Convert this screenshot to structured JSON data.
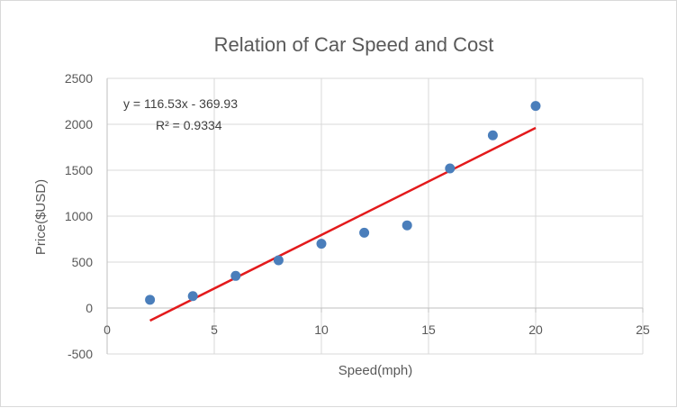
{
  "chart_data": {
    "type": "scatter",
    "title": "Relation of Car Speed and Cost",
    "xlabel": "Speed(mph)",
    "ylabel": "Price($USD)",
    "xlim": [
      0,
      25
    ],
    "ylim": [
      -500,
      2500
    ],
    "x_ticks": [
      0,
      5,
      10,
      15,
      20,
      25
    ],
    "y_ticks": [
      -500,
      0,
      500,
      1000,
      1500,
      2000,
      2500
    ],
    "x_tick_labels": [
      "0",
      "5",
      "10",
      "15",
      "20",
      "25"
    ],
    "y_tick_labels": [
      "-500",
      "0",
      "500",
      "1000",
      "1500",
      "2000",
      "2500"
    ],
    "grid": true,
    "series": [
      {
        "x": [
          2,
          4,
          6,
          8,
          10,
          12,
          14,
          16,
          18,
          20
        ],
        "y": [
          90,
          130,
          350,
          520,
          700,
          820,
          900,
          1520,
          1880,
          2200
        ],
        "color": "#4a7ebb"
      }
    ],
    "trendline": {
      "type": "linear",
      "slope": 116.53,
      "intercept": -369.93,
      "x_range": [
        2,
        20
      ],
      "color": "#e31a1c",
      "equation": "y = 116.53x - 369.93",
      "r_squared": "R² = 0.9334"
    }
  }
}
